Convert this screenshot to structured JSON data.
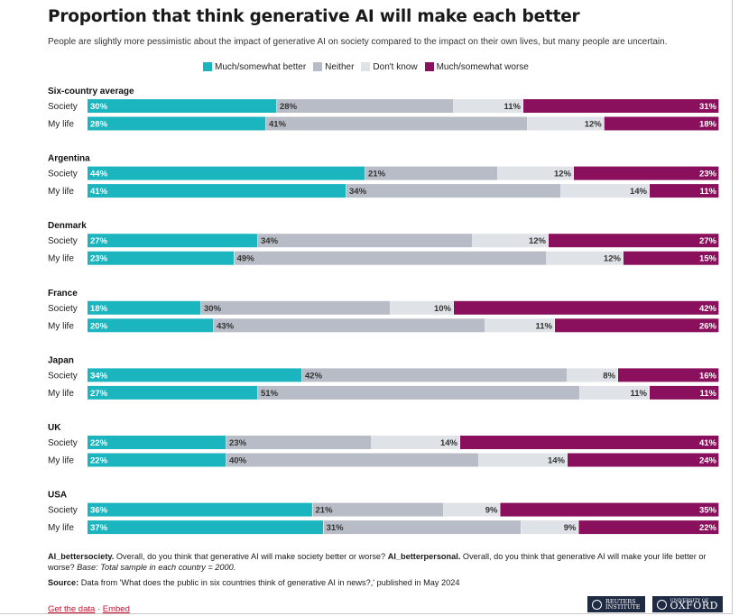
{
  "title": "Proportion that think generative AI will make each better",
  "subtitle": "People are slightly more pessimistic about the impact of generative AI on society compared to the impact on their own lives, but many people are uncertain.",
  "legend": [
    {
      "label": "Much/somewhat better",
      "color": "#1ab5bf"
    },
    {
      "label": "Neither",
      "color": "#b8bcc6"
    },
    {
      "label": "Don't know",
      "color": "#dfe2e7"
    },
    {
      "label": "Much/somewhat worse",
      "color": "#8a0f5c"
    }
  ],
  "notes": {
    "q1_code": "AI_bettersociety.",
    "q1_text": " Overall, do you think that generative AI will make society better or worse? ",
    "q2_code": "AI_betterpersonal.",
    "q2_text": " Overall, do you think that generative AI will make your life better or worse? ",
    "base": "Base: Total sample in each country = 2000."
  },
  "source": {
    "label": "Source:",
    "text": " Data from 'What does the public in six countries think of generative AI in news?,' published in May 2024"
  },
  "links": {
    "get_data": "Get the data",
    "separator": " · ",
    "embed": "Embed"
  },
  "logos": {
    "reuters_line1": "REUTERS",
    "reuters_line2": "INSTITUTE",
    "oxford_small": "UNIVERSITY OF",
    "oxford_big": "OXFORD"
  },
  "chart_data": {
    "type": "stacked-bar-100",
    "series": [
      "Much/somewhat better",
      "Neither",
      "Don't know",
      "Much/somewhat worse"
    ],
    "colors": [
      "#1ab5bf",
      "#b8bcc6",
      "#dfe2e7",
      "#8a0f5c"
    ],
    "groups": [
      {
        "name": "Six-country average",
        "rows": [
          {
            "label": "Society",
            "values": [
              30,
              28,
              11,
              31
            ]
          },
          {
            "label": "My life",
            "values": [
              28,
              41,
              12,
              18
            ]
          }
        ]
      },
      {
        "name": "Argentina",
        "rows": [
          {
            "label": "Society",
            "values": [
              44,
              21,
              12,
              23
            ]
          },
          {
            "label": "My life",
            "values": [
              41,
              34,
              14,
              11
            ]
          }
        ]
      },
      {
        "name": "Denmark",
        "rows": [
          {
            "label": "Society",
            "values": [
              27,
              34,
              12,
              27
            ]
          },
          {
            "label": "My life",
            "values": [
              23,
              49,
              12,
              15
            ]
          }
        ]
      },
      {
        "name": "France",
        "rows": [
          {
            "label": "Society",
            "values": [
              18,
              30,
              10,
              42
            ]
          },
          {
            "label": "My life",
            "values": [
              20,
              43,
              11,
              26
            ]
          }
        ]
      },
      {
        "name": "Japan",
        "rows": [
          {
            "label": "Society",
            "values": [
              34,
              42,
              8,
              16
            ]
          },
          {
            "label": "My life",
            "values": [
              27,
              51,
              11,
              11
            ]
          }
        ]
      },
      {
        "name": "UK",
        "rows": [
          {
            "label": "Society",
            "values": [
              22,
              23,
              14,
              41
            ]
          },
          {
            "label": "My life",
            "values": [
              22,
              40,
              14,
              24
            ]
          }
        ]
      },
      {
        "name": "USA",
        "rows": [
          {
            "label": "Society",
            "values": [
              36,
              21,
              9,
              35
            ]
          },
          {
            "label": "My life",
            "values": [
              37,
              31,
              9,
              22
            ]
          }
        ]
      }
    ]
  }
}
